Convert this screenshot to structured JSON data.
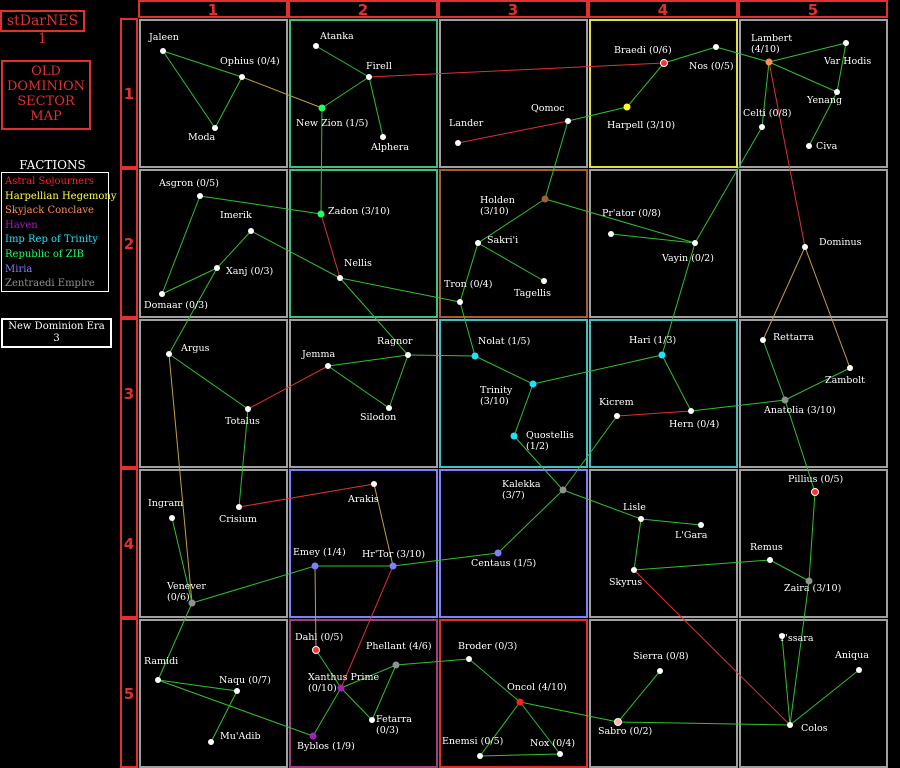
{
  "app_title": "stDarNES 1",
  "map_title": "OLD\nDOMINION\nSECTOR\nMAP",
  "factions_title": "FACTIONS",
  "factions": [
    {
      "name": "Astral Sojourners",
      "color": "#ff2020"
    },
    {
      "name": "Harpellian Hegemony",
      "color": "#ffff40"
    },
    {
      "name": "Skyjack Conclave",
      "color": "#ff9050"
    },
    {
      "name": "Haven",
      "color": "#a020c0"
    },
    {
      "name": "Imp Rep of Trinity",
      "color": "#20e0ff"
    },
    {
      "name": "Republic of ZIB",
      "color": "#20ff60"
    },
    {
      "name": "Miria",
      "color": "#8080ff"
    },
    {
      "name": "Zentraedi Empire",
      "color": "#909090"
    }
  ],
  "era": "New Dominion Era\n3",
  "column_headers": [
    "1",
    "2",
    "3",
    "4",
    "5"
  ],
  "row_headers": [
    "1",
    "2",
    "3",
    "4",
    "5"
  ],
  "sector_borders": {
    "A2": "#40c080",
    "A4": "#e0e040",
    "B2": "#40c080",
    "B3": "#a06030",
    "C3": "#40c0c0",
    "C4": "#40c0c0",
    "D2": "#8080ff",
    "D3": "#8080ff",
    "E2": "#a04080",
    "E3": "#e03030"
  },
  "systems": [
    {
      "id": "jaleen",
      "name": "Jaleen",
      "color": "#ffffff"
    },
    {
      "id": "ophius",
      "name": "Ophius (0/4)",
      "color": "#ffffff"
    },
    {
      "id": "moda",
      "name": "Moda",
      "color": "#ffffff"
    },
    {
      "id": "atanka",
      "name": "Atanka",
      "color": "#ffffff"
    },
    {
      "id": "firell",
      "name": "Firell",
      "color": "#ffffff"
    },
    {
      "id": "newzion",
      "name": "New Zion (1/5)",
      "color": "#20ff60"
    },
    {
      "id": "alphera",
      "name": "Alphera",
      "color": "#ffffff"
    },
    {
      "id": "lander",
      "name": "Lander",
      "color": "#ffffff"
    },
    {
      "id": "qomoc",
      "name": "Qomoc",
      "color": "#ffffff"
    },
    {
      "id": "braedi",
      "name": "Braedi (0/6)",
      "color": "#ff3030"
    },
    {
      "id": "nos",
      "name": "Nos (0/5)",
      "color": "#ffffff"
    },
    {
      "id": "harpell",
      "name": "Harpell (3/10)",
      "color": "#ffff20"
    },
    {
      "id": "lambert",
      "name": "Lambert (4/10)",
      "color": "#ff9050"
    },
    {
      "id": "varhodis",
      "name": "Var Hodis",
      "color": "#ffffff"
    },
    {
      "id": "yenang",
      "name": "Yenang",
      "color": "#ffffff"
    },
    {
      "id": "celti",
      "name": "Celti (0/8)",
      "color": "#ffffff"
    },
    {
      "id": "civa",
      "name": "Civa",
      "color": "#ffffff"
    },
    {
      "id": "asgron",
      "name": "Asgron (0/5)",
      "color": "#ffffff"
    },
    {
      "id": "imerik",
      "name": "Imerik",
      "color": "#ffffff"
    },
    {
      "id": "xanj",
      "name": "Xanj (0/3)",
      "color": "#ffffff"
    },
    {
      "id": "domaar",
      "name": "Domaar (0/3)",
      "color": "#ffffff"
    },
    {
      "id": "zadon",
      "name": "Zadon (3/10)",
      "color": "#20ff60"
    },
    {
      "id": "nellis",
      "name": "Nellis",
      "color": "#ffffff"
    },
    {
      "id": "holden",
      "name": "Holden (3/10)",
      "color": "#a06030"
    },
    {
      "id": "sakrii",
      "name": "Sakri'i",
      "color": "#ffffff"
    },
    {
      "id": "tron",
      "name": "Tron (0/4)",
      "color": "#ffffff"
    },
    {
      "id": "tagellis",
      "name": "Tagellis",
      "color": "#ffffff"
    },
    {
      "id": "prator",
      "name": "Pr'ator (0/8)",
      "color": "#ffffff"
    },
    {
      "id": "vayin",
      "name": "Vayin (0/2)",
      "color": "#ffffff"
    },
    {
      "id": "dominus",
      "name": "Dominus",
      "color": "#ffffff"
    },
    {
      "id": "argus",
      "name": "Argus",
      "color": "#ffffff"
    },
    {
      "id": "jemma",
      "name": "Jemma",
      "color": "#ffffff"
    },
    {
      "id": "ragnor",
      "name": "Ragnor",
      "color": "#ffffff"
    },
    {
      "id": "silodon",
      "name": "Silodon",
      "color": "#ffffff"
    },
    {
      "id": "totalus",
      "name": "Totalus",
      "color": "#ffffff"
    },
    {
      "id": "nolat",
      "name": "Nolat (1/5)",
      "color": "#20e0ff"
    },
    {
      "id": "trinity",
      "name": "Trinity (3/10)",
      "color": "#20e0ff"
    },
    {
      "id": "quostellis",
      "name": "Quostellis (1/2)",
      "color": "#20e0ff"
    },
    {
      "id": "hari",
      "name": "Hari (1/3)",
      "color": "#20e0ff"
    },
    {
      "id": "kicrem",
      "name": "Kicrem",
      "color": "#ffffff"
    },
    {
      "id": "hern",
      "name": "Hern (0/4)",
      "color": "#ffffff"
    },
    {
      "id": "rettarra",
      "name": "Rettarra",
      "color": "#ffffff"
    },
    {
      "id": "zambolt",
      "name": "Zambolt",
      "color": "#ffffff"
    },
    {
      "id": "anatolia",
      "name": "Anatolia (3/10)",
      "color": "#909090"
    },
    {
      "id": "ingram",
      "name": "Ingram",
      "color": "#ffffff"
    },
    {
      "id": "crisium",
      "name": "Crisium",
      "color": "#ffffff"
    },
    {
      "id": "venever",
      "name": "Venever (0/6)",
      "color": "#909090"
    },
    {
      "id": "arakis",
      "name": "Arakis",
      "color": "#ffffff"
    },
    {
      "id": "emey",
      "name": "Emey (1/4)",
      "color": "#8080ff"
    },
    {
      "id": "hrtor",
      "name": "Hr'Tor (3/10)",
      "color": "#8080ff"
    },
    {
      "id": "kalekka",
      "name": "Kalekka (3/7)",
      "color": "#909090"
    },
    {
      "id": "centaus",
      "name": "Centaus (1/5)",
      "color": "#8080ff"
    },
    {
      "id": "lisle",
      "name": "Lisle",
      "color": "#ffffff"
    },
    {
      "id": "lgara",
      "name": "L'Gara",
      "color": "#ffffff"
    },
    {
      "id": "skyrus",
      "name": "Skyrus",
      "color": "#ffffff"
    },
    {
      "id": "pillius",
      "name": "Pillius (0/5)",
      "color": "#ff3030"
    },
    {
      "id": "remus",
      "name": "Remus",
      "color": "#ffffff"
    },
    {
      "id": "zaira",
      "name": "Zaira (3/10)",
      "color": "#909090"
    },
    {
      "id": "ramidi",
      "name": "Ramidi",
      "color": "#ffffff"
    },
    {
      "id": "naqu",
      "name": "Naqu (0/7)",
      "color": "#ffffff"
    },
    {
      "id": "muadib",
      "name": "Mu'Adib",
      "color": "#ffffff"
    },
    {
      "id": "dahl",
      "name": "Dahl (0/5)",
      "color": "#ff3030"
    },
    {
      "id": "phellant",
      "name": "Phellant (4/6)",
      "color": "#909090"
    },
    {
      "id": "xanthus",
      "name": "Xanthus Prime (0/10)",
      "color": "#a020c0"
    },
    {
      "id": "fetarra",
      "name": "Fetarra (0/3)",
      "color": "#ffffff"
    },
    {
      "id": "byblos",
      "name": "Byblos (1/9)",
      "color": "#a020c0"
    },
    {
      "id": "broder",
      "name": "Broder (0/3)",
      "color": "#ffffff"
    },
    {
      "id": "oncol",
      "name": "Oncol (4/10)",
      "color": "#ff2020"
    },
    {
      "id": "enemsi",
      "name": "Enemsi (0/5)",
      "color": "#ffffff"
    },
    {
      "id": "nox",
      "name": "Nox (0/4)",
      "color": "#ffffff"
    },
    {
      "id": "sierra",
      "name": "Sierra (0/8)",
      "color": "#ffffff"
    },
    {
      "id": "sabro",
      "name": "Sabro (0/2)",
      "color": "#ffb0b0"
    },
    {
      "id": "yssara",
      "name": "Y'ssara",
      "color": "#ffffff"
    },
    {
      "id": "aniqua",
      "name": "Aniqua",
      "color": "#ffffff"
    },
    {
      "id": "colos",
      "name": "Colos",
      "color": "#ffffff"
    }
  ],
  "routes": [
    {
      "from": "jaleen",
      "to": "ophius",
      "color": "#30c030"
    },
    {
      "from": "jaleen",
      "to": "moda",
      "color": "#30c030"
    },
    {
      "from": "ophius",
      "to": "moda",
      "color": "#30c030"
    },
    {
      "from": "ophius",
      "to": "newzion",
      "color": "#c0a040"
    },
    {
      "from": "atanka",
      "to": "firell",
      "color": "#30c030"
    },
    {
      "from": "firell",
      "to": "newzion",
      "color": "#30c030"
    },
    {
      "from": "firell",
      "to": "alphera",
      "color": "#30c030"
    },
    {
      "from": "firell",
      "to": "braedi",
      "color": "#e03030"
    },
    {
      "from": "newzion",
      "to": "zadon",
      "color": "#30c030"
    },
    {
      "from": "lander",
      "to": "qomoc",
      "color": "#e03030"
    },
    {
      "from": "qomoc",
      "to": "harpell",
      "color": "#30c030"
    },
    {
      "from": "qomoc",
      "to": "holden",
      "color": "#30c030"
    },
    {
      "from": "braedi",
      "to": "nos",
      "color": "#30c030"
    },
    {
      "from": "braedi",
      "to": "harpell",
      "color": "#30c030"
    },
    {
      "from": "nos",
      "to": "lambert",
      "color": "#30c030"
    },
    {
      "from": "lambert",
      "to": "varhodis",
      "color": "#30c030"
    },
    {
      "from": "lambert",
      "to": "yenang",
      "color": "#30c030"
    },
    {
      "from": "lambert",
      "to": "celti",
      "color": "#30c030"
    },
    {
      "from": "lambert",
      "to": "dominus",
      "color": "#e03030"
    },
    {
      "from": "varhodis",
      "to": "yenang",
      "color": "#30c030"
    },
    {
      "from": "yenang",
      "to": "civa",
      "color": "#30c030"
    },
    {
      "from": "celti",
      "to": "vayin",
      "color": "#30c030"
    },
    {
      "from": "asgron",
      "to": "zadon",
      "color": "#30c030"
    },
    {
      "from": "asgron",
      "to": "domaar",
      "color": "#30c030"
    },
    {
      "from": "imerik",
      "to": "xanj",
      "color": "#30c030"
    },
    {
      "from": "imerik",
      "to": "nellis",
      "color": "#30c030"
    },
    {
      "from": "domaar",
      "to": "xanj",
      "color": "#30c030"
    },
    {
      "from": "xanj",
      "to": "argus",
      "color": "#30c030"
    },
    {
      "from": "zadon",
      "to": "nellis",
      "color": "#e03030"
    },
    {
      "from": "nellis",
      "to": "tron",
      "color": "#30c030"
    },
    {
      "from": "nellis",
      "to": "ragnor",
      "color": "#30c030"
    },
    {
      "from": "holden",
      "to": "sakrii",
      "color": "#30c030"
    },
    {
      "from": "holden",
      "to": "vayin",
      "color": "#30c030"
    },
    {
      "from": "sakrii",
      "to": "tron",
      "color": "#30c030"
    },
    {
      "from": "sakrii",
      "to": "tagellis",
      "color": "#30c030"
    },
    {
      "from": "tron",
      "to": "nolat",
      "color": "#30c030"
    },
    {
      "from": "prator",
      "to": "vayin",
      "color": "#30c030"
    },
    {
      "from": "vayin",
      "to": "hari",
      "color": "#30c030"
    },
    {
      "from": "dominus",
      "to": "rettarra",
      "color": "#c0a040"
    },
    {
      "from": "dominus",
      "to": "zambolt",
      "color": "#c0a040"
    },
    {
      "from": "argus",
      "to": "totalus",
      "color": "#30c030"
    },
    {
      "from": "argus",
      "to": "venever",
      "color": "#c0a040"
    },
    {
      "from": "jemma",
      "to": "ragnor",
      "color": "#30c030"
    },
    {
      "from": "jemma",
      "to": "silodon",
      "color": "#30c030"
    },
    {
      "from": "jemma",
      "to": "totalus",
      "color": "#e03030"
    },
    {
      "from": "ragnor",
      "to": "silodon",
      "color": "#30c030"
    },
    {
      "from": "ragnor",
      "to": "nolat",
      "color": "#30c030"
    },
    {
      "from": "totalus",
      "to": "crisium",
      "color": "#30c030"
    },
    {
      "from": "nolat",
      "to": "trinity",
      "color": "#30c030"
    },
    {
      "from": "trinity",
      "to": "quostellis",
      "color": "#30c030"
    },
    {
      "from": "trinity",
      "to": "hari",
      "color": "#30c030"
    },
    {
      "from": "hari",
      "to": "hern",
      "color": "#30c030"
    },
    {
      "from": "kicrem",
      "to": "hern",
      "color": "#e03030"
    },
    {
      "from": "kicrem",
      "to": "kalekka",
      "color": "#30c030"
    },
    {
      "from": "hern",
      "to": "anatolia",
      "color": "#30c030"
    },
    {
      "from": "rettarra",
      "to": "anatolia",
      "color": "#30c030"
    },
    {
      "from": "zambolt",
      "to": "anatolia",
      "color": "#30c030"
    },
    {
      "from": "anatolia",
      "to": "pillius",
      "color": "#30c030"
    },
    {
      "from": "quostellis",
      "to": "kalekka",
      "color": "#30c030"
    },
    {
      "from": "ingram",
      "to": "venever",
      "color": "#30c030"
    },
    {
      "from": "crisium",
      "to": "arakis",
      "color": "#e03030"
    },
    {
      "from": "venever",
      "to": "emey",
      "color": "#30c030"
    },
    {
      "from": "venever",
      "to": "ramidi",
      "color": "#30c030"
    },
    {
      "from": "arakis",
      "to": "hrtor",
      "color": "#c0a040"
    },
    {
      "from": "emey",
      "to": "hrtor",
      "color": "#30c030"
    },
    {
      "from": "emey",
      "to": "dahl",
      "color": "#c0a040"
    },
    {
      "from": "hrtor",
      "to": "centaus",
      "color": "#30c030"
    },
    {
      "from": "hrtor",
      "to": "xanthus",
      "color": "#e03030"
    },
    {
      "from": "kalekka",
      "to": "centaus",
      "color": "#30c030"
    },
    {
      "from": "kalekka",
      "to": "lisle",
      "color": "#30c030"
    },
    {
      "from": "lisle",
      "to": "lgara",
      "color": "#30c030"
    },
    {
      "from": "lisle",
      "to": "skyrus",
      "color": "#30c030"
    },
    {
      "from": "skyrus",
      "to": "remus",
      "color": "#30c030"
    },
    {
      "from": "skyrus",
      "to": "colos",
      "color": "#e03030"
    },
    {
      "from": "remus",
      "to": "zaira",
      "color": "#30c030"
    },
    {
      "from": "pillius",
      "to": "zaira",
      "color": "#30c030"
    },
    {
      "from": "ramidi",
      "to": "naqu",
      "color": "#30c030"
    },
    {
      "from": "ramidi",
      "to": "byblos",
      "color": "#30c030"
    },
    {
      "from": "naqu",
      "to": "muadib",
      "color": "#30c030"
    },
    {
      "from": "dahl",
      "to": "xanthus",
      "color": "#30c030"
    },
    {
      "from": "xanthus",
      "to": "phellant",
      "color": "#30c030"
    },
    {
      "from": "xanthus",
      "to": "fetarra",
      "color": "#30c030"
    },
    {
      "from": "xanthus",
      "to": "byblos",
      "color": "#30c030"
    },
    {
      "from": "phellant",
      "to": "broder",
      "color": "#30c030"
    },
    {
      "from": "phellant",
      "to": "fetarra",
      "color": "#30c030"
    },
    {
      "from": "broder",
      "to": "oncol",
      "color": "#30c030"
    },
    {
      "from": "oncol",
      "to": "enemsi",
      "color": "#30c030"
    },
    {
      "from": "oncol",
      "to": "nox",
      "color": "#30c030"
    },
    {
      "from": "oncol",
      "to": "sabro",
      "color": "#30c030"
    },
    {
      "from": "sabro",
      "to": "sierra",
      "color": "#30c030"
    },
    {
      "from": "sabro",
      "to": "colos",
      "color": "#30c030"
    },
    {
      "from": "enemsi",
      "to": "nox",
      "color": "#30c030"
    },
    {
      "from": "colos",
      "to": "yssara",
      "color": "#30c030"
    },
    {
      "from": "colos",
      "to": "aniqua",
      "color": "#30c030"
    },
    {
      "from": "colos",
      "to": "zaira",
      "color": "#30c030"
    }
  ]
}
